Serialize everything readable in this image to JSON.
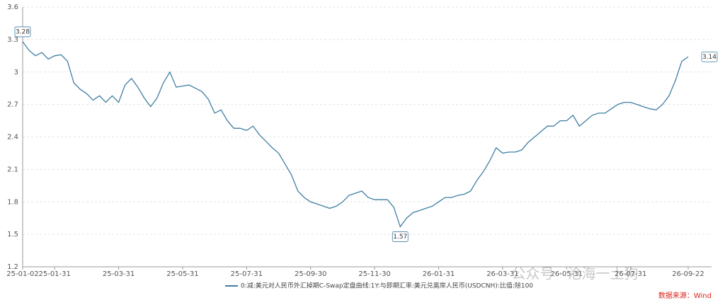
{
  "chart_data": {
    "type": "line",
    "categories": [
      "25-01-02",
      null,
      null,
      null,
      null,
      "25-01-31",
      null,
      null,
      null,
      null,
      null,
      null,
      null,
      null,
      null,
      "25-03-31",
      null,
      null,
      null,
      null,
      null,
      null,
      null,
      null,
      null,
      "25-05-31",
      null,
      null,
      null,
      null,
      null,
      null,
      null,
      null,
      null,
      "25-07-31",
      null,
      null,
      null,
      null,
      null,
      null,
      null,
      null,
      null,
      "25-09-30",
      null,
      null,
      null,
      null,
      null,
      null,
      null,
      null,
      null,
      "25-11-30",
      null,
      null,
      null,
      null,
      null,
      null,
      null,
      null,
      null,
      "26-01-31",
      null,
      null,
      null,
      null,
      null,
      null,
      null,
      null,
      null,
      "26-03-31",
      null,
      null,
      null,
      null,
      null,
      null,
      null,
      null,
      null,
      "26-05-31",
      null,
      null,
      null,
      null,
      null,
      null,
      null,
      null,
      null,
      "26-07-31",
      null,
      null,
      null,
      null,
      null,
      null,
      null,
      null,
      "26-09-22"
    ],
    "series": [
      {
        "name": "0:减:美元对人民币外汇掉期C-Swap定盘曲线:1Y:与即期汇率:美元兑离岸人民币(USDCNH):比值:除100",
        "color": "#3f7fa3",
        "values": [
          3.28,
          3.2,
          3.15,
          3.18,
          3.12,
          3.15,
          3.16,
          3.1,
          2.9,
          2.84,
          2.8,
          2.74,
          2.78,
          2.72,
          2.78,
          2.72,
          2.88,
          2.94,
          2.86,
          2.76,
          2.68,
          2.76,
          2.9,
          3.0,
          2.86,
          2.87,
          2.88,
          2.85,
          2.82,
          2.75,
          2.62,
          2.65,
          2.55,
          2.48,
          2.48,
          2.46,
          2.5,
          2.42,
          2.36,
          2.3,
          2.25,
          2.15,
          2.05,
          1.9,
          1.84,
          1.8,
          1.78,
          1.76,
          1.74,
          1.76,
          1.8,
          1.86,
          1.88,
          1.9,
          1.84,
          1.82,
          1.82,
          1.82,
          1.75,
          1.57,
          1.65,
          1.7,
          1.72,
          1.74,
          1.76,
          1.8,
          1.84,
          1.84,
          1.86,
          1.87,
          1.9,
          2.0,
          2.08,
          2.18,
          2.3,
          2.25,
          2.26,
          2.26,
          2.28,
          2.35,
          2.4,
          2.45,
          2.5,
          2.5,
          2.55,
          2.55,
          2.6,
          2.5,
          2.55,
          2.6,
          2.62,
          2.62,
          2.66,
          2.7,
          2.72,
          2.72,
          2.7,
          2.68,
          2.66,
          2.65,
          2.7,
          2.78,
          2.92,
          3.1,
          3.14
        ]
      }
    ],
    "ylim": [
      1.2,
      3.6
    ],
    "yticks": [
      1.2,
      1.5,
      1.8,
      2.1,
      2.4,
      2.7,
      3,
      3.3,
      3.6
    ],
    "grid": true,
    "source": "数据来源：Wind",
    "watermark": "公众号 · 沧海一土狗"
  }
}
